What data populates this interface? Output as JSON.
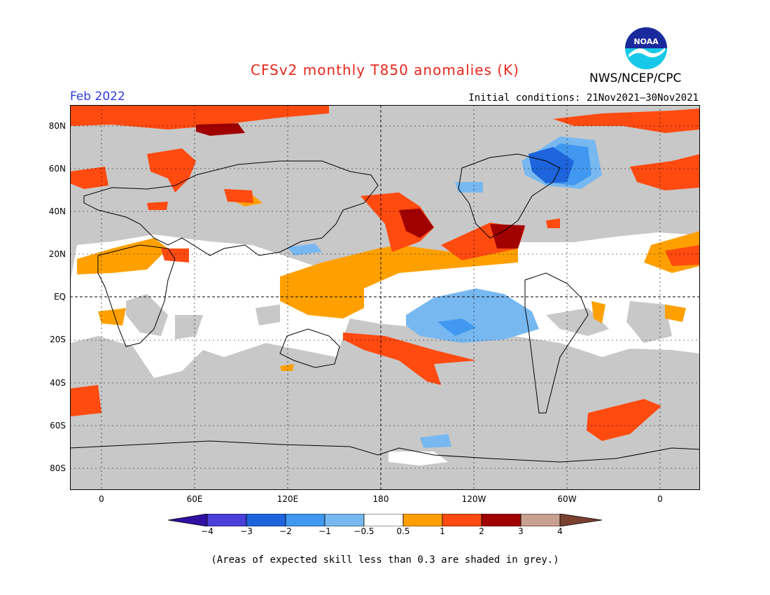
{
  "header": {
    "title": "CFSv2 monthly T850 anomalies (K)",
    "period": "Feb 2022",
    "initial_conditions": "Initial conditions: 21Nov2021–30Nov2021",
    "agency": "NWS/NCEP/CPC",
    "logo_text": "NOAA"
  },
  "map": {
    "lat_labels": [
      "80N",
      "60N",
      "40N",
      "20N",
      "EQ",
      "20S",
      "40S",
      "60S",
      "80S"
    ],
    "lon_labels": [
      "0",
      "60E",
      "120E",
      "180",
      "120W",
      "60W",
      "0"
    ],
    "colors": {
      "grey_low_skill": "#c8c8c8",
      "neutral": "#ffffff",
      "pos_0_5_1": "#ffa000",
      "pos_1_2": "#ff4a10",
      "pos_2_3": "#a00000",
      "neg_0_5_1": "#78b8f0",
      "neg_1_2": "#4098f0",
      "neg_2_3": "#1e64dc"
    }
  },
  "colorbar": {
    "labels": [
      "−4",
      "−3",
      "−2",
      "−1",
      "−0.5",
      "0.5",
      "1",
      "2",
      "3",
      "4"
    ],
    "colors": [
      "#3010a0",
      "#4a40d8",
      "#1e64dc",
      "#4098f0",
      "#78b8f0",
      "#ffffff",
      "#ffa000",
      "#ff4a10",
      "#a00000",
      "#c8a090",
      "#7a4030"
    ]
  },
  "footnote": "(Areas of expected skill less than 0.3 are shaded in grey.)"
}
